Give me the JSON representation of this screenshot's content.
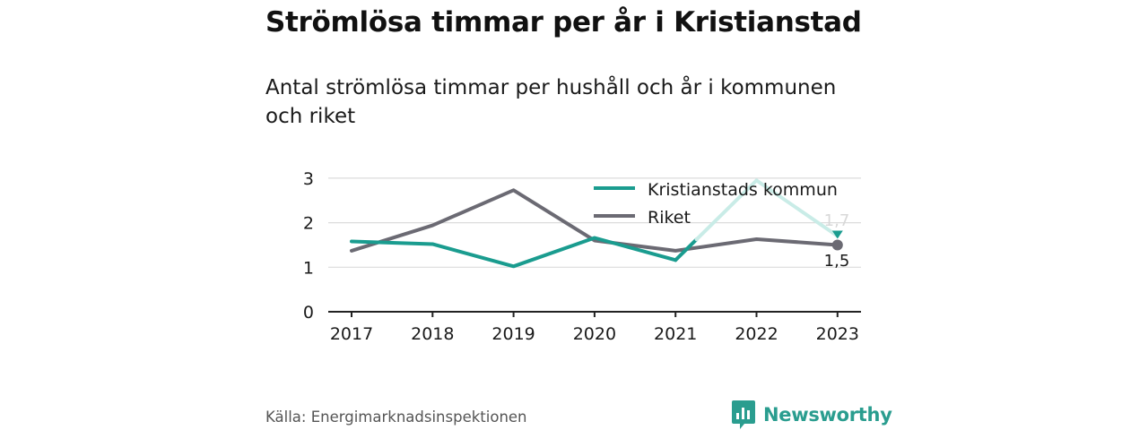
{
  "header": {
    "title": "Strömlösa timmar per år i Kristianstad",
    "subtitle": "Antal strömlösa timmar per hushåll och år i kommunen och riket"
  },
  "chart_data": {
    "type": "line",
    "categories": [
      "2017",
      "2018",
      "2019",
      "2020",
      "2021",
      "2022",
      "2023"
    ],
    "series": [
      {
        "name": "Kristianstads kommun",
        "color": "#1a9c8f",
        "values": [
          1.58,
          1.52,
          1.02,
          1.66,
          1.16,
          2.95,
          1.7
        ]
      },
      {
        "name": "Riket",
        "color": "#6b6a73",
        "values": [
          1.37,
          1.94,
          2.73,
          1.6,
          1.37,
          1.63,
          1.5
        ]
      }
    ],
    "yticks": [
      0,
      1,
      2,
      3
    ],
    "ylim": [
      0,
      3
    ],
    "legend_position": "top-right",
    "end_labels": {
      "kristianstad": "1,7",
      "riket": "1,5"
    },
    "grid": true
  },
  "footer": {
    "source": "Källa: Energimarknadsinspektionen",
    "brand": "Newsworthy",
    "brand_color": "#2a9d8f"
  }
}
